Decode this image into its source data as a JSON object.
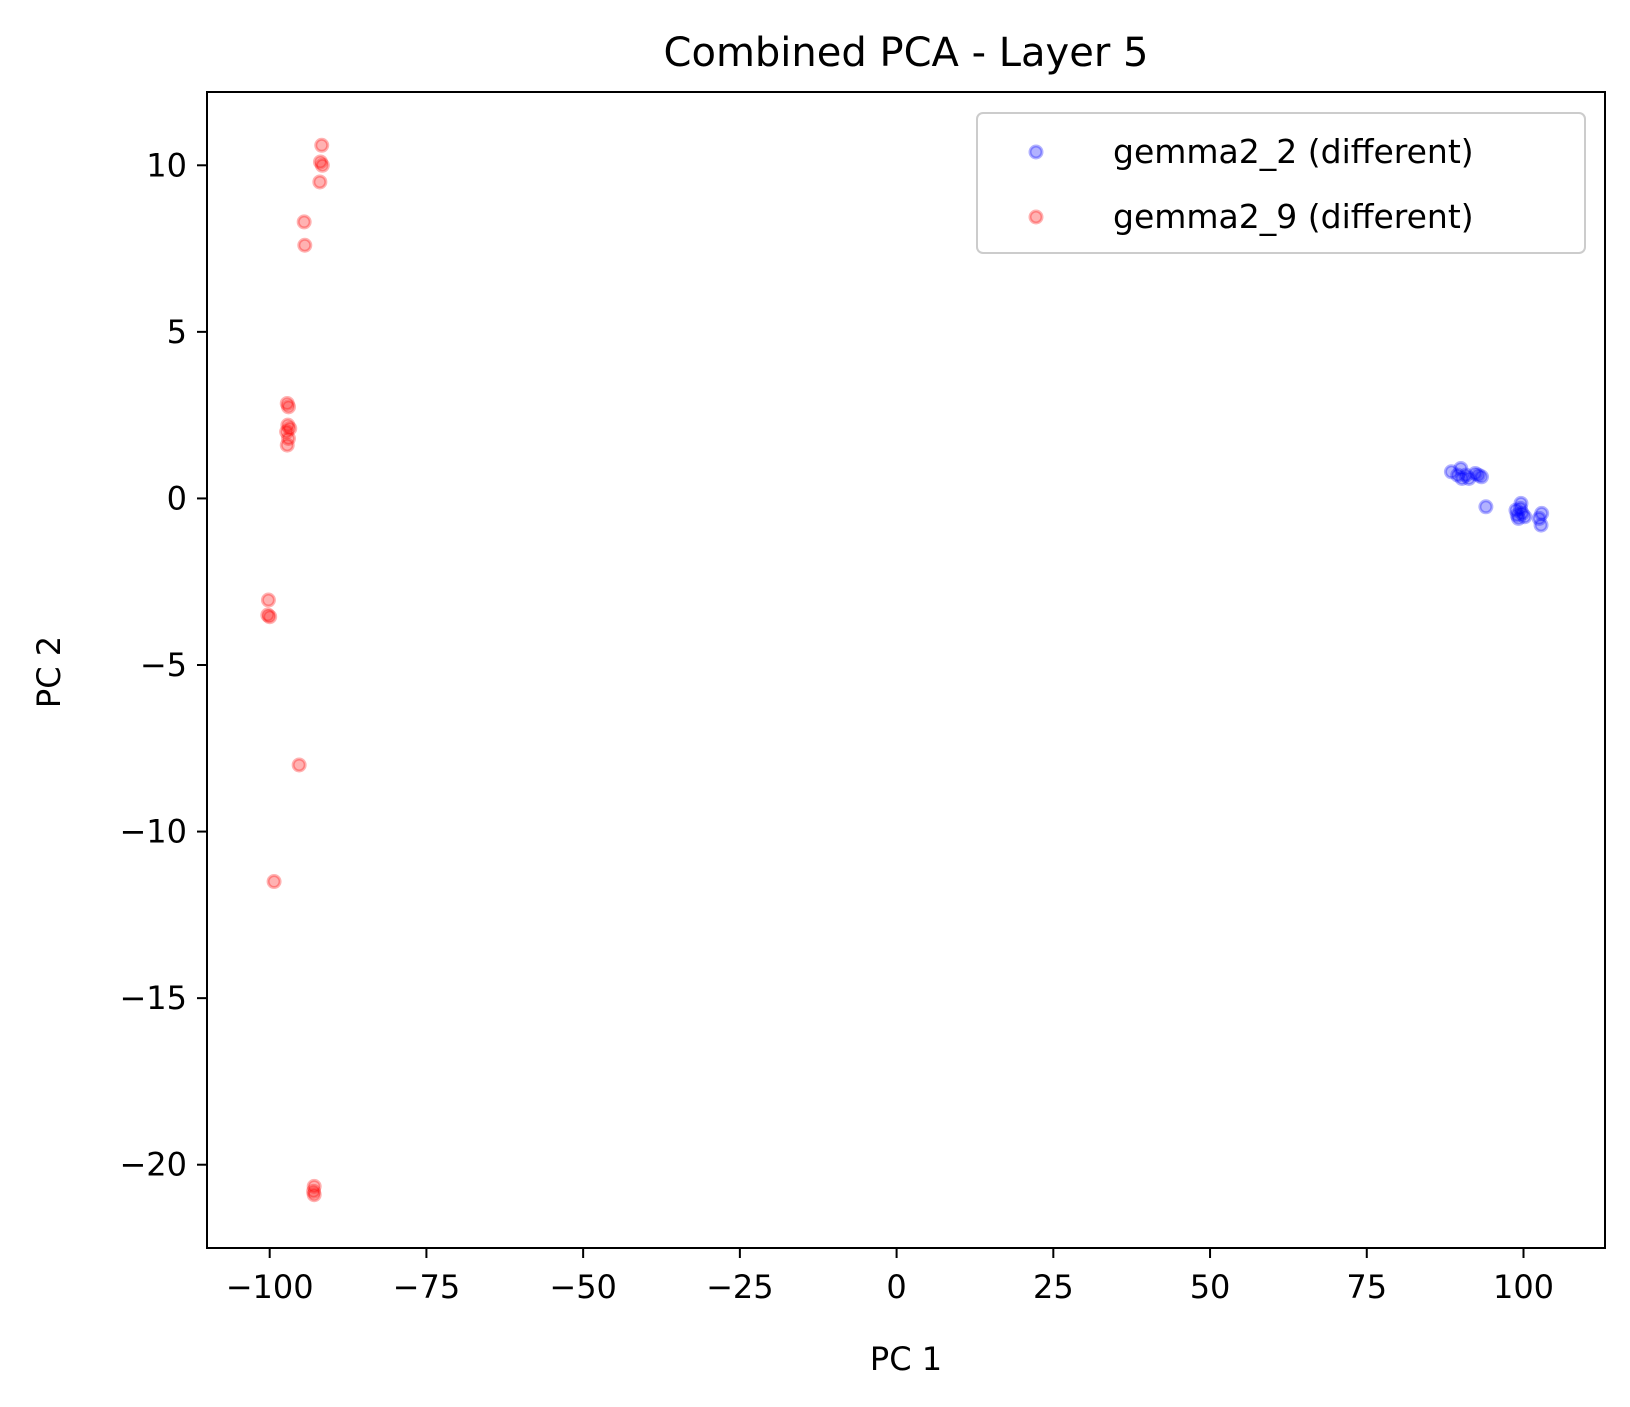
{
  "chart_data": {
    "type": "scatter",
    "title": "Combined PCA - Layer 5",
    "xlabel": "PC 1",
    "ylabel": "PC 2",
    "xlim": [
      -110,
      113
    ],
    "ylim": [
      -22.5,
      12.2
    ],
    "x_ticks": [
      -100,
      -75,
      -50,
      -25,
      0,
      25,
      50,
      75,
      100
    ],
    "x_tick_labels": [
      "−100",
      "−75",
      "−50",
      "−25",
      "0",
      "25",
      "50",
      "75",
      "100"
    ],
    "y_ticks": [
      -20,
      -15,
      -10,
      -5,
      0,
      5,
      10
    ],
    "y_tick_labels": [
      "−20",
      "−15",
      "−10",
      "−5",
      "0",
      "5",
      "10"
    ],
    "grid": false,
    "legend_position": "top-right",
    "series": [
      {
        "name": "gemma2_2 (different)",
        "color": "#0000ff",
        "points": [
          [
            88.5,
            0.8
          ],
          [
            89.5,
            0.7
          ],
          [
            90.0,
            0.9
          ],
          [
            90.2,
            0.6
          ],
          [
            90.8,
            0.7
          ],
          [
            91.3,
            0.6
          ],
          [
            92.3,
            0.75
          ],
          [
            92.8,
            0.7
          ],
          [
            93.3,
            0.65
          ],
          [
            94.0,
            -0.25
          ],
          [
            98.8,
            -0.35
          ],
          [
            99.0,
            -0.5
          ],
          [
            99.2,
            -0.6
          ],
          [
            99.5,
            -0.3
          ],
          [
            99.6,
            -0.15
          ],
          [
            99.8,
            -0.45
          ],
          [
            100.2,
            -0.55
          ],
          [
            102.5,
            -0.6
          ],
          [
            102.9,
            -0.45
          ],
          [
            102.8,
            -0.8
          ]
        ]
      },
      {
        "name": "gemma2_9 (different)",
        "color": "#ff0000",
        "points": [
          [
            -91.7,
            10.6
          ],
          [
            -91.9,
            10.1
          ],
          [
            -91.6,
            10.0
          ],
          [
            -92.0,
            9.5
          ],
          [
            -94.5,
            8.3
          ],
          [
            -94.4,
            7.6
          ],
          [
            -97.2,
            2.85
          ],
          [
            -97.0,
            2.75
          ],
          [
            -97.1,
            2.2
          ],
          [
            -96.8,
            2.1
          ],
          [
            -97.3,
            2.0
          ],
          [
            -97.0,
            1.8
          ],
          [
            -97.2,
            1.6
          ],
          [
            -100.2,
            -3.05
          ],
          [
            -100.3,
            -3.5
          ],
          [
            -100.0,
            -3.55
          ],
          [
            -95.3,
            -8.0
          ],
          [
            -99.3,
            -11.5
          ],
          [
            -92.9,
            -20.65
          ],
          [
            -93.0,
            -20.8
          ],
          [
            -92.9,
            -20.9
          ]
        ]
      }
    ]
  }
}
